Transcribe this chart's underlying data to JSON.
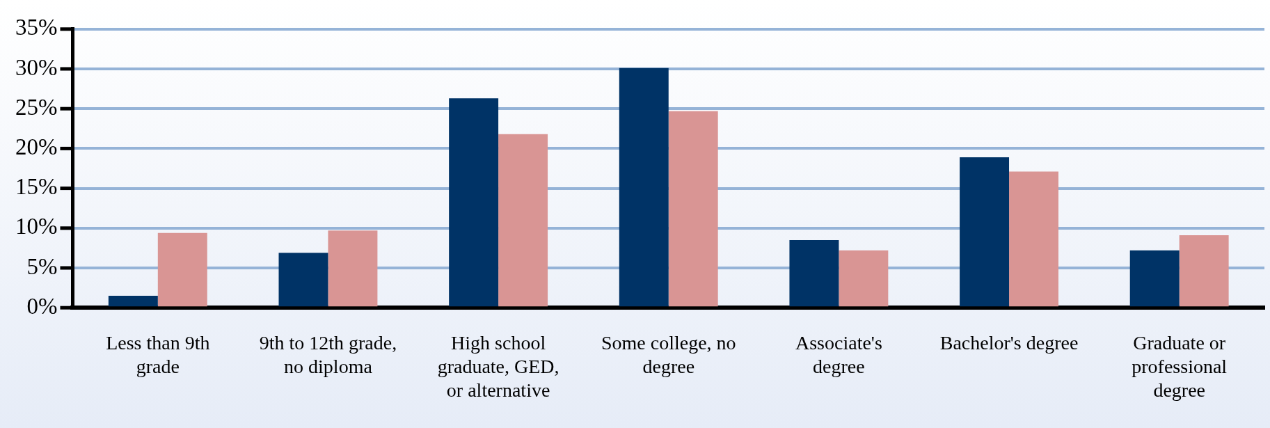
{
  "chart_data": {
    "type": "bar",
    "categories": [
      "Less than 9th grade",
      "9th to 12th grade, no diploma",
      "High school graduate, GED, or alternative",
      "Some college, no degree",
      "Associate's degree",
      "Bachelor's degree",
      "Graduate or professional degree"
    ],
    "series": [
      {
        "color": "#003366",
        "values": [
          1.5,
          6.9,
          26.3,
          30.1,
          8.5,
          18.9,
          7.2
        ]
      },
      {
        "color": "#d99594",
        "values": [
          9.4,
          9.7,
          21.8,
          24.7,
          7.2,
          17.1,
          9.1
        ]
      }
    ],
    "ylim": [
      0,
      35
    ],
    "yticks": [
      {
        "value": 0,
        "label": "0%"
      },
      {
        "value": 5,
        "label": "5%"
      },
      {
        "value": 10,
        "label": "10%"
      },
      {
        "value": 15,
        "label": "15%"
      },
      {
        "value": 20,
        "label": "20%"
      },
      {
        "value": 25,
        "label": "25%"
      },
      {
        "value": 30,
        "label": "30%"
      },
      {
        "value": 35,
        "label": "35%"
      }
    ],
    "grid": "y",
    "legend": false
  }
}
